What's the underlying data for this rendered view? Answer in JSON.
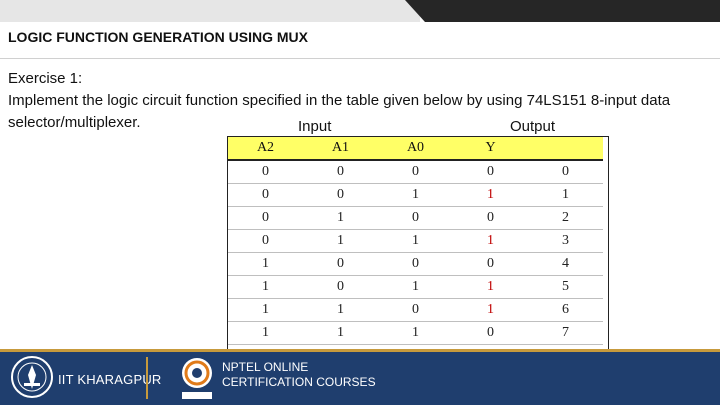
{
  "slide": {
    "title": "LOGIC FUNCTION GENERATION USING MUX",
    "exercise_label": "Exercise 1:",
    "instruction": "Implement the logic circuit function specified in the table given below by using 74LS151 8-input data selector/multiplexer."
  },
  "table": {
    "group_input_label": "Input",
    "group_output_label": "Output",
    "headers": [
      "A2",
      "A1",
      "A0",
      "Y",
      ""
    ],
    "rows": [
      [
        "0",
        "0",
        "0",
        "0",
        "0"
      ],
      [
        "0",
        "0",
        "1",
        "1",
        "1"
      ],
      [
        "0",
        "1",
        "0",
        "0",
        "2"
      ],
      [
        "0",
        "1",
        "1",
        "1",
        "3"
      ],
      [
        "1",
        "0",
        "0",
        "0",
        "4"
      ],
      [
        "1",
        "0",
        "1",
        "1",
        "5"
      ],
      [
        "1",
        "1",
        "0",
        "1",
        "6"
      ],
      [
        "1",
        "1",
        "1",
        "0",
        "7"
      ]
    ]
  },
  "footer": {
    "institute": "IIT KHARAGPUR",
    "program_line1": "NPTEL ONLINE",
    "program_line2": "CERTIFICATION COURSES",
    "icons": [
      "iit-kharagpur-logo",
      "nptel-logo"
    ]
  },
  "colors": {
    "header_fill": "#ffff66",
    "output_one_color": "#c00000",
    "footer_bg": "#1f3e6e",
    "footer_accent": "#c79a3c"
  }
}
